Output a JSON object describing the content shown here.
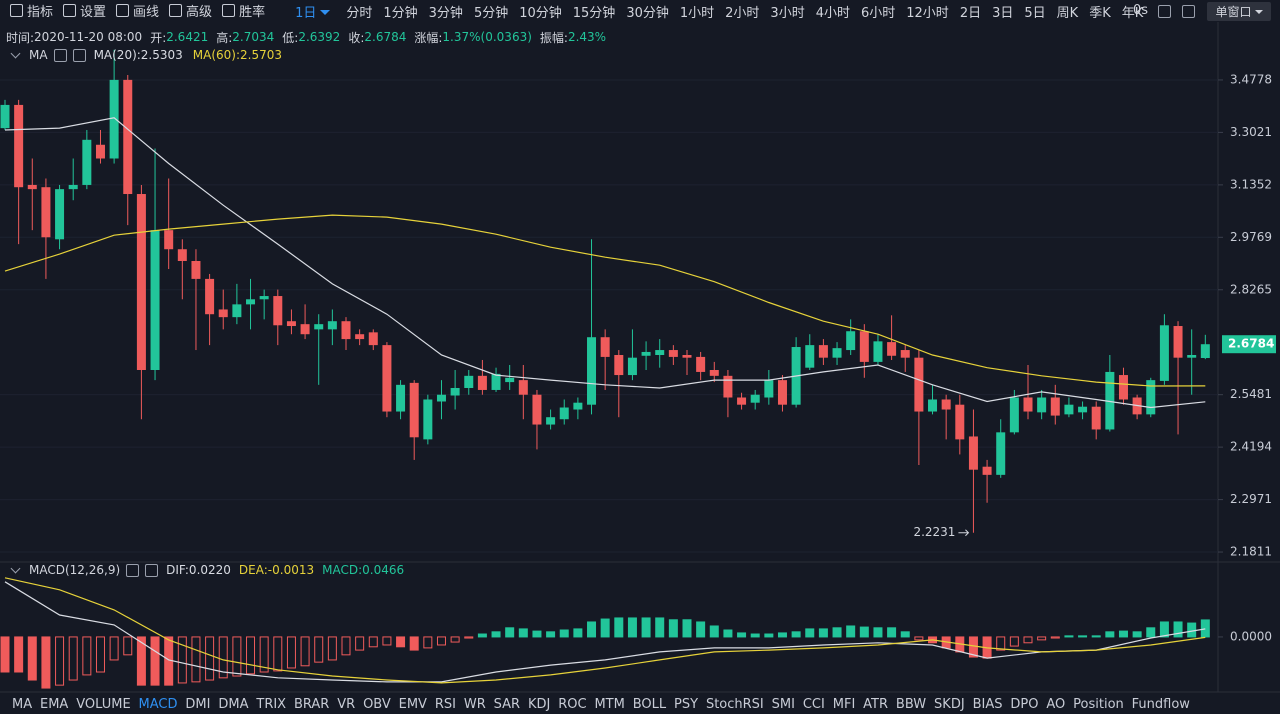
{
  "toolbar": {
    "tools": [
      "指标",
      "设置",
      "画线",
      "高级",
      "胜率"
    ],
    "period": "1日",
    "intervals": [
      "分时",
      "1分钟",
      "3分钟",
      "5分钟",
      "10分钟",
      "15分钟",
      "30分钟",
      "1小时",
      "2小时",
      "3小时",
      "4小时",
      "6小时",
      "12小时",
      "2日",
      "3日",
      "5日",
      "周K",
      "季K",
      "年K"
    ],
    "timer": "0s",
    "window": "单窗口"
  },
  "info_bar": [
    {
      "label": "时间:",
      "value": "2020-11-20 08:00"
    },
    {
      "label": "开:",
      "value": "2.6421"
    },
    {
      "label": "高:",
      "value": "2.7034"
    },
    {
      "label": "低:",
      "value": "2.6392"
    },
    {
      "label": "收:",
      "value": "2.6784"
    },
    {
      "label": "涨幅:",
      "value": "1.37%(0.0363)"
    },
    {
      "label": "振幅:",
      "value": "2.43%"
    }
  ],
  "indicator_tabs": [
    "MA",
    "EMA",
    "VOLUME",
    "MACD",
    "DMI",
    "DMA",
    "TRIX",
    "BRAR",
    "VR",
    "OBV",
    "EMV",
    "RSI",
    "WR",
    "SAR",
    "KDJ",
    "ROC",
    "MTM",
    "BOLL",
    "PSY",
    "StochRSI",
    "SMI",
    "CCI",
    "MFI",
    "ATR",
    "BBW",
    "SKDJ",
    "BIAS",
    "DPO",
    "AO",
    "Position",
    "Fundflow"
  ],
  "active_tab": 3,
  "chart_data": [
    {
      "type": "candlestick",
      "title": "MA",
      "up_color": "#22c59a",
      "down_color": "#ef5b5b",
      "log_scale": true,
      "grid": true,
      "ylim": [
        2.164,
        3.6
      ],
      "yticks": [
        3.4778,
        3.3021,
        3.1352,
        2.9769,
        2.8265,
        2.5481,
        2.4194,
        2.2971,
        2.1811
      ],
      "open": [
        3.316,
        3.393,
        3.135,
        3.128,
        2.971,
        3.122,
        3.135,
        3.262,
        3.218,
        3.478,
        3.107,
        2.611,
        2.998,
        2.942,
        2.908,
        2.857,
        2.772,
        2.751,
        2.786,
        2.8,
        2.809,
        2.74,
        2.732,
        2.718,
        2.718,
        2.74,
        2.705,
        2.71,
        2.676,
        2.506,
        2.578,
        2.438,
        2.531,
        2.546,
        2.565,
        2.596,
        2.56,
        2.58,
        2.585,
        2.548,
        2.474,
        2.487,
        2.511,
        2.523,
        2.697,
        2.65,
        2.598,
        2.648,
        2.65,
        2.663,
        2.65,
        2.645,
        2.611,
        2.596,
        2.541,
        2.528,
        2.541,
        2.585,
        2.523,
        2.617,
        2.676,
        2.643,
        2.663,
        2.713,
        2.632,
        2.684,
        2.663,
        2.643,
        2.506,
        2.536,
        2.523,
        2.445,
        2.373,
        2.354,
        2.455,
        2.541,
        2.504,
        2.541,
        2.499,
        2.504,
        2.518,
        2.462,
        2.598,
        2.541,
        2.499,
        2.583,
        2.727,
        2.643,
        2.6421
      ],
      "high": [
        3.41,
        3.41,
        3.218,
        3.155,
        3.135,
        3.218,
        3.31,
        3.31,
        3.583,
        3.495,
        3.135,
        3.25,
        3.155,
        2.971,
        2.942,
        2.871,
        2.827,
        2.843,
        2.857,
        2.827,
        2.827,
        2.772,
        2.786,
        2.759,
        2.772,
        2.751,
        2.718,
        2.718,
        2.684,
        2.585,
        2.585,
        2.548,
        2.585,
        2.611,
        2.611,
        2.637,
        2.617,
        2.624,
        2.624,
        2.56,
        2.511,
        2.536,
        2.541,
        2.971,
        2.718,
        2.663,
        2.718,
        2.686,
        2.692,
        2.676,
        2.663,
        2.658,
        2.632,
        2.611,
        2.553,
        2.56,
        2.611,
        2.598,
        2.697,
        2.705,
        2.692,
        2.684,
        2.745,
        2.732,
        2.705,
        2.756,
        2.676,
        2.663,
        2.573,
        2.548,
        2.548,
        2.511,
        2.389,
        2.487,
        2.56,
        2.624,
        2.56,
        2.573,
        2.541,
        2.531,
        2.531,
        2.65,
        2.617,
        2.548,
        2.591,
        2.759,
        2.74,
        2.718,
        2.7034
      ],
      "low": [
        3.31,
        2.957,
        2.998,
        2.857,
        2.942,
        3.088,
        3.122,
        3.202,
        3.202,
        3.013,
        2.487,
        2.585,
        2.885,
        2.8,
        2.663,
        2.676,
        2.718,
        2.732,
        2.718,
        2.745,
        2.676,
        2.705,
        2.692,
        2.573,
        2.676,
        2.663,
        2.676,
        2.663,
        2.492,
        2.487,
        2.389,
        2.426,
        2.487,
        2.511,
        2.548,
        2.548,
        2.555,
        2.56,
        2.487,
        2.414,
        2.462,
        2.474,
        2.487,
        2.499,
        2.56,
        2.492,
        2.585,
        2.611,
        2.617,
        2.624,
        2.598,
        2.585,
        2.58,
        2.492,
        2.511,
        2.511,
        2.523,
        2.506,
        2.516,
        2.611,
        2.624,
        2.624,
        2.65,
        2.591,
        2.624,
        2.637,
        2.606,
        2.377,
        2.499,
        2.438,
        2.402,
        2.2231,
        2.29,
        2.347,
        2.45,
        2.487,
        2.487,
        2.474,
        2.492,
        2.487,
        2.438,
        2.457,
        2.523,
        2.487,
        2.492,
        2.573,
        2.45,
        2.548,
        2.6392
      ],
      "close": [
        3.393,
        3.128,
        3.122,
        2.977,
        3.122,
        3.135,
        3.278,
        3.218,
        3.478,
        3.107,
        2.611,
        2.998,
        2.942,
        2.908,
        2.857,
        2.759,
        2.751,
        2.786,
        2.8,
        2.809,
        2.729,
        2.727,
        2.705,
        2.732,
        2.74,
        2.692,
        2.692,
        2.676,
        2.506,
        2.573,
        2.443,
        2.536,
        2.548,
        2.565,
        2.596,
        2.56,
        2.601,
        2.591,
        2.548,
        2.474,
        2.492,
        2.516,
        2.528,
        2.697,
        2.645,
        2.598,
        2.643,
        2.658,
        2.663,
        2.645,
        2.643,
        2.606,
        2.596,
        2.541,
        2.523,
        2.548,
        2.585,
        2.523,
        2.671,
        2.676,
        2.643,
        2.668,
        2.713,
        2.632,
        2.686,
        2.648,
        2.643,
        2.506,
        2.536,
        2.511,
        2.438,
        2.366,
        2.354,
        2.455,
        2.541,
        2.506,
        2.541,
        2.496,
        2.523,
        2.518,
        2.462,
        2.606,
        2.536,
        2.499,
        2.585,
        2.729,
        2.643,
        2.65,
        2.6784
      ],
      "series": [
        {
          "name": "MA(20):2.5303",
          "color": "#d9dce3",
          "x": [
            0,
            4,
            8,
            12,
            16,
            20,
            24,
            28,
            32,
            36,
            40,
            44,
            48,
            52,
            56,
            60,
            64,
            68,
            72,
            76,
            80,
            84,
            88
          ],
          "values": [
            3.31,
            3.316,
            3.35,
            3.202,
            3.073,
            2.957,
            2.843,
            2.759,
            2.65,
            2.598,
            2.585,
            2.573,
            2.565,
            2.585,
            2.585,
            2.606,
            2.624,
            2.573,
            2.531,
            2.555,
            2.536,
            2.516,
            2.5303
          ]
        },
        {
          "name": "MA(60):2.5703",
          "color": "#e6d23a",
          "x": [
            0,
            4,
            8,
            12,
            16,
            20,
            24,
            28,
            32,
            36,
            40,
            44,
            48,
            52,
            56,
            60,
            64,
            68,
            72,
            76,
            80,
            84,
            88
          ],
          "values": [
            2.879,
            2.928,
            2.983,
            3.001,
            3.016,
            3.031,
            3.043,
            3.037,
            3.016,
            2.986,
            2.948,
            2.919,
            2.896,
            2.849,
            2.791,
            2.74,
            2.705,
            2.65,
            2.617,
            2.596,
            2.58,
            2.57,
            2.5703
          ]
        }
      ]
    },
    {
      "type": "macd",
      "title": "MACD(12,26,9)",
      "ylim": [
        -0.159,
        0.197
      ],
      "yticks": [
        {
          "value": 0,
          "label": "0.0000"
        }
      ],
      "histogram": {
        "name": "MACD:0.0466",
        "up_color": "#22c59a",
        "down_color": "#ef5b5b",
        "values": [
          -0.096,
          -0.096,
          -0.118,
          -0.14,
          -0.132,
          -0.118,
          -0.104,
          -0.096,
          -0.063,
          -0.049,
          -0.132,
          -0.132,
          -0.132,
          -0.126,
          -0.123,
          -0.118,
          -0.112,
          -0.107,
          -0.101,
          -0.096,
          -0.093,
          -0.085,
          -0.079,
          -0.069,
          -0.063,
          -0.049,
          -0.036,
          -0.027,
          -0.022,
          -0.027,
          -0.036,
          -0.03,
          -0.022,
          -0.014,
          -0.003,
          0.008,
          0.014,
          0.025,
          0.022,
          0.016,
          0.014,
          0.019,
          0.022,
          0.041,
          0.049,
          0.052,
          0.052,
          0.052,
          0.052,
          0.047,
          0.047,
          0.041,
          0.03,
          0.019,
          0.011,
          0.008,
          0.008,
          0.011,
          0.014,
          0.022,
          0.022,
          0.025,
          0.03,
          0.027,
          0.025,
          0.025,
          0.014,
          -0.008,
          -0.016,
          -0.03,
          -0.041,
          -0.055,
          -0.058,
          -0.036,
          -0.025,
          -0.016,
          -0.008,
          -0.003,
          0.003,
          0.003,
          0.003,
          0.014,
          0.016,
          0.014,
          0.025,
          0.041,
          0.041,
          0.038,
          0.0466
        ]
      },
      "series": [
        {
          "name": "DIF:0.0220",
          "color": "#d9dce3",
          "x": [
            0,
            4,
            8,
            12,
            16,
            20,
            24,
            28,
            32,
            36,
            40,
            44,
            48,
            52,
            56,
            60,
            64,
            68,
            72,
            76,
            80,
            84,
            88
          ],
          "values": [
            0.151,
            0.06,
            0.033,
            -0.063,
            -0.096,
            -0.112,
            -0.118,
            -0.123,
            -0.123,
            -0.096,
            -0.077,
            -0.063,
            -0.041,
            -0.03,
            -0.03,
            -0.022,
            -0.016,
            -0.022,
            -0.058,
            -0.041,
            -0.036,
            -0.003,
            0.022
          ]
        },
        {
          "name": "DEA:-0.0013",
          "color": "#e6d23a",
          "x": [
            0,
            4,
            8,
            12,
            16,
            20,
            24,
            28,
            32,
            36,
            40,
            44,
            48,
            52,
            56,
            60,
            64,
            68,
            72,
            76,
            80,
            84,
            88
          ],
          "values": [
            0.162,
            0.129,
            0.074,
            -0.008,
            -0.063,
            -0.09,
            -0.107,
            -0.118,
            -0.126,
            -0.118,
            -0.104,
            -0.085,
            -0.063,
            -0.041,
            -0.036,
            -0.03,
            -0.022,
            -0.008,
            -0.03,
            -0.041,
            -0.036,
            -0.022,
            -0.0013
          ]
        }
      ]
    }
  ]
}
